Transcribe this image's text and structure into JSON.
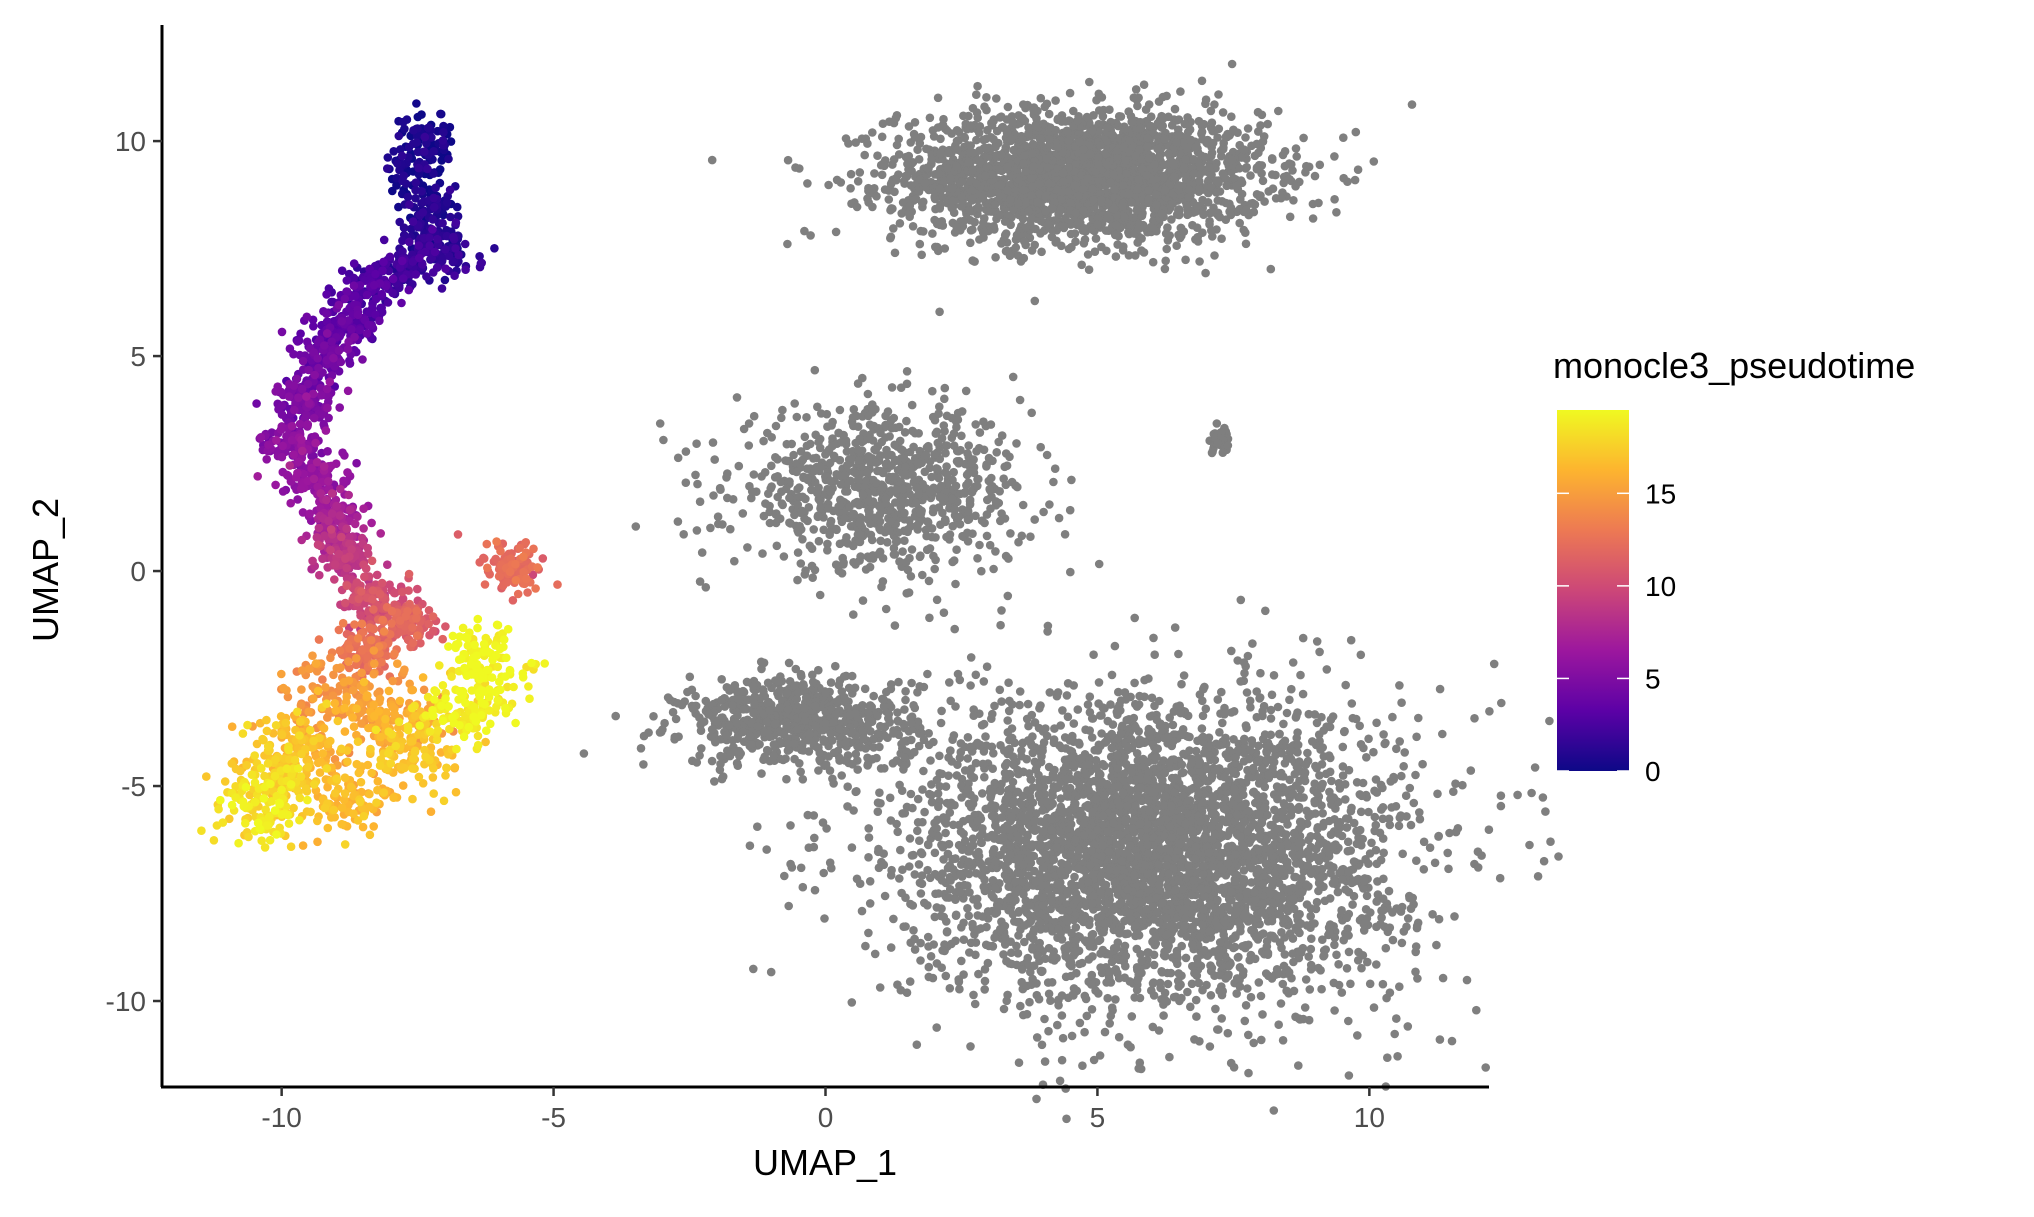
{
  "chart_data": {
    "type": "scatter",
    "title": "",
    "xlabel": "UMAP_1",
    "ylabel": "UMAP_2",
    "xlim": [
      -12.2,
      12.2
    ],
    "ylim": [
      -12,
      12.7
    ],
    "x_ticks": [
      -10,
      -5,
      0,
      5,
      10
    ],
    "y_ticks": [
      -10,
      -5,
      0,
      5,
      10
    ],
    "grid": false,
    "legend": {
      "title": "monocle3_pseudotime",
      "position": "right",
      "type": "colorbar",
      "range": [
        0,
        19.5
      ],
      "breaks": [
        0,
        5,
        10,
        15
      ],
      "colors": [
        "#0d0887",
        "#5c01a6",
        "#9c179e",
        "#cc4778",
        "#ed7953",
        "#fdb42f",
        "#f0f921"
      ]
    },
    "na_color": "#7f7f7f",
    "trajectory_cluster": {
      "description_points": "pseudotime-colored cells; each anchor is [x, y, pseudotime]",
      "anchors": [
        [
          -7.4,
          10.1,
          0.2
        ],
        [
          -7.5,
          9.4,
          0.5
        ],
        [
          -7.3,
          8.6,
          0.8
        ],
        [
          -7.2,
          7.8,
          1.2
        ],
        [
          -7.0,
          7.4,
          1.4
        ],
        [
          -7.6,
          7.2,
          1.6
        ],
        [
          -8.1,
          6.9,
          2.2
        ],
        [
          -8.5,
          6.5,
          2.8
        ],
        [
          -8.8,
          5.8,
          3.4
        ],
        [
          -9.2,
          5.0,
          4.0
        ],
        [
          -9.6,
          4.0,
          4.8
        ],
        [
          -9.7,
          3.0,
          5.3
        ],
        [
          -9.4,
          2.2,
          6.0
        ],
        [
          -9.0,
          1.2,
          7.0
        ],
        [
          -8.8,
          0.3,
          8.5
        ],
        [
          -8.3,
          -0.6,
          10.0
        ],
        [
          -7.7,
          -1.2,
          11.5
        ],
        [
          -8.5,
          -1.8,
          12.5
        ],
        [
          -9.0,
          -2.8,
          14.5
        ],
        [
          -8.0,
          -3.4,
          15.5
        ],
        [
          -9.6,
          -4.0,
          16.5
        ],
        [
          -10.1,
          -4.8,
          17.5
        ],
        [
          -10.3,
          -5.4,
          18.5
        ],
        [
          -8.8,
          -5.2,
          16.5
        ],
        [
          -7.6,
          -4.2,
          17.0
        ],
        [
          -6.7,
          -3.3,
          19.0
        ],
        [
          -6.3,
          -2.2,
          19.3
        ],
        [
          -5.8,
          0.1,
          12.0
        ]
      ]
    },
    "na_clusters": [
      {
        "label": "top-right",
        "center": [
          4.7,
          9.2
        ],
        "extent": [
          4.0,
          1.8
        ],
        "points": 2600
      },
      {
        "label": "central-branch",
        "center": [
          1.0,
          1.9
        ],
        "extent": [
          3.2,
          2.2
        ],
        "points": 900
      },
      {
        "label": "mid-left",
        "center": [
          -0.5,
          -3.5
        ],
        "extent": [
          2.6,
          1.2
        ],
        "points": 700
      },
      {
        "label": "bottom-right",
        "center": [
          6.0,
          -6.5
        ],
        "extent": [
          5.4,
          4.2
        ],
        "points": 4200
      },
      {
        "label": "small-right",
        "center": [
          7.3,
          3.0
        ],
        "extent": [
          0.25,
          0.35
        ],
        "points": 40
      }
    ]
  }
}
